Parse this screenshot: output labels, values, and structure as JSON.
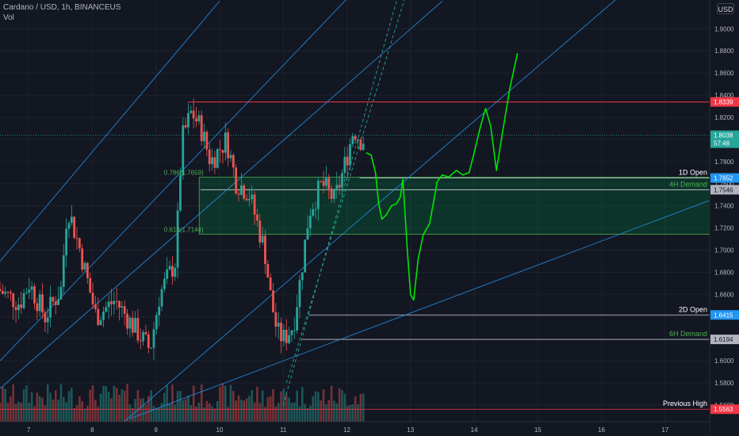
{
  "header": {
    "symbol": "Cardano / USD, 1h, BINANCEUS",
    "volume_label": "Vol",
    "currency_button": "USD"
  },
  "colors": {
    "background": "#131722",
    "candle_up": "#26a69a",
    "candle_down": "#ef5350",
    "projection": "#00e600",
    "channel": "#2196f3",
    "zone_fill": "rgba(0,128,64,0.28)",
    "zone_border": "#4caf50",
    "resistance": "#f23645"
  },
  "chart_data": {
    "type": "candlestick",
    "title": "Cardano / USD, 1h, BINANCEUS",
    "y_axis": {
      "ticks": [
        "1.9000",
        "1.8800",
        "1.8600",
        "1.8400",
        "1.8200",
        "1.8000",
        "1.7800",
        "1.7600",
        "1.7400",
        "1.7200",
        "1.7000",
        "1.6800",
        "1.6600",
        "1.6400",
        "1.6200",
        "1.6000",
        "1.5800",
        "1.5600"
      ],
      "range": [
        1.545,
        1.926
      ]
    },
    "x_axis": {
      "ticks": [
        "7",
        "8",
        "9",
        "10",
        "11",
        "12",
        "13",
        "14",
        "15",
        "16",
        "17"
      ],
      "range_days": [
        6.55,
        17.7
      ]
    },
    "price_tags": [
      {
        "value": "1.8339",
        "color": "#f23645"
      },
      {
        "value": "1.8038",
        "sub": "57:48",
        "color": "#26a69a"
      },
      {
        "value": "1.7652",
        "color": "#2196f3"
      },
      {
        "value": "1.7546",
        "color": "#b2b5be"
      },
      {
        "value": "1.6415",
        "color": "#2196f3"
      },
      {
        "value": "1.6194",
        "color": "#b2b5be"
      },
      {
        "value": "1.5563",
        "color": "#f23645"
      }
    ],
    "levels": [
      {
        "label": "1D Open",
        "value": 1.7652
      },
      {
        "label": "4H Demand",
        "value": 1.7546
      },
      {
        "label": "2D Open",
        "value": 1.6415
      },
      {
        "label": "6H Demand",
        "value": 1.6194
      },
      {
        "label": "Previous High",
        "value": 1.5563
      }
    ],
    "fib_labels": [
      {
        "text": "0.786(1.7659)",
        "value": 1.7659
      },
      {
        "text": "0.618(1.7144)",
        "value": 1.7144
      }
    ],
    "resistance": 1.8339,
    "demand_zone": [
      1.7144,
      1.7659
    ],
    "current_price": 1.8038,
    "projection_points": [
      [
        12.3,
        1.788
      ],
      [
        12.38,
        1.786
      ],
      [
        12.45,
        1.77
      ],
      [
        12.5,
        1.742
      ],
      [
        12.55,
        1.728
      ],
      [
        12.62,
        1.732
      ],
      [
        12.7,
        1.74
      ],
      [
        12.78,
        1.742
      ],
      [
        12.84,
        1.748
      ],
      [
        12.88,
        1.764
      ],
      [
        12.95,
        1.7
      ],
      [
        13.0,
        1.66
      ],
      [
        13.05,
        1.655
      ],
      [
        13.12,
        1.692
      ],
      [
        13.2,
        1.714
      ],
      [
        13.3,
        1.724
      ],
      [
        13.42,
        1.762
      ],
      [
        13.5,
        1.768
      ],
      [
        13.6,
        1.766
      ],
      [
        13.72,
        1.772
      ],
      [
        13.82,
        1.768
      ],
      [
        13.92,
        1.77
      ],
      [
        14.0,
        1.788
      ],
      [
        14.1,
        1.812
      ],
      [
        14.18,
        1.828
      ],
      [
        14.26,
        1.812
      ],
      [
        14.35,
        1.772
      ],
      [
        14.45,
        1.808
      ],
      [
        14.56,
        1.846
      ],
      [
        14.68,
        1.878
      ]
    ]
  }
}
